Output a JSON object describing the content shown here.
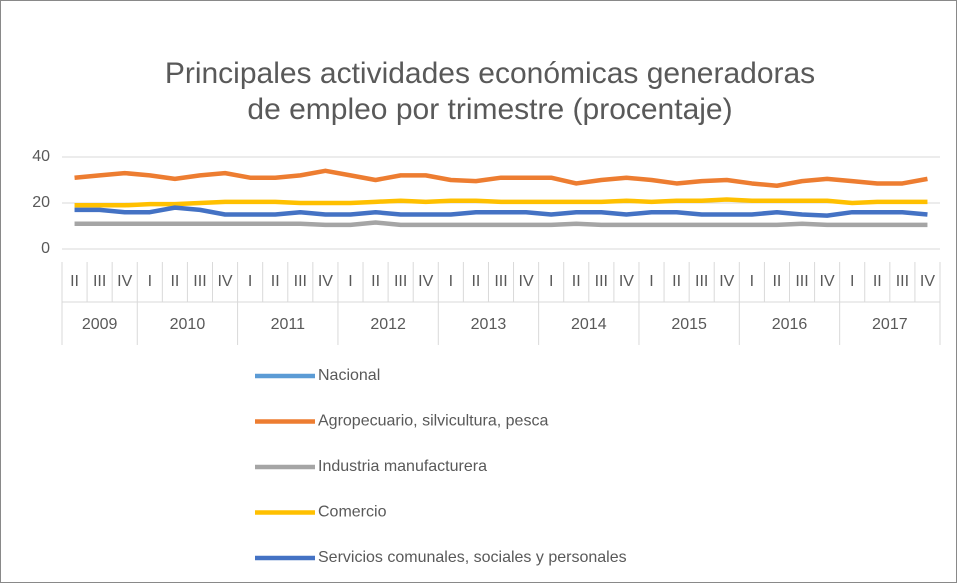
{
  "chart_data": {
    "type": "line",
    "title": [
      "Principales actividades económicas generadoras",
      "de empleo por trimestre (procentaje)"
    ],
    "groups": [
      {
        "name": "2009",
        "categories": [
          "II",
          "III",
          "IV"
        ]
      },
      {
        "name": "2010",
        "categories": [
          "I",
          "II",
          "III",
          "IV"
        ]
      },
      {
        "name": "2011",
        "categories": [
          "I",
          "II",
          "III",
          "IV"
        ]
      },
      {
        "name": "2012",
        "categories": [
          "I",
          "II",
          "III",
          "IV"
        ]
      },
      {
        "name": "2013",
        "categories": [
          "I",
          "II",
          "III",
          "IV"
        ]
      },
      {
        "name": "2014",
        "categories": [
          "I",
          "II",
          "III",
          "IV"
        ]
      },
      {
        "name": "2015",
        "categories": [
          "I",
          "II",
          "III",
          "IV"
        ]
      },
      {
        "name": "2016",
        "categories": [
          "I",
          "II",
          "III",
          "IV"
        ]
      },
      {
        "name": "2017",
        "categories": [
          "I",
          "II",
          "III",
          "IV"
        ]
      }
    ],
    "ylim": [
      0,
      40
    ],
    "yticks": [
      0,
      20,
      40
    ],
    "grid": true,
    "legend": "bottom",
    "series": [
      {
        "name": "Nacional",
        "color": "#5b9bd5",
        "values": [
          null,
          null,
          null,
          null,
          null,
          null,
          null,
          null,
          null,
          null,
          null,
          null,
          null,
          null,
          null,
          null,
          null,
          null,
          null,
          null,
          null,
          null,
          null,
          null,
          null,
          null,
          null,
          null,
          null,
          null,
          null,
          null,
          null,
          null,
          null
        ]
      },
      {
        "name": "Agropecuario, silvicultura, pesca",
        "color": "#ed7d31",
        "values": [
          31,
          32,
          33,
          32,
          30.5,
          32,
          33,
          31,
          31,
          32,
          34,
          32,
          30,
          32,
          32,
          30,
          29.5,
          31,
          31,
          31,
          28.5,
          30,
          31,
          30,
          28.5,
          29.5,
          30,
          28.5,
          27.5,
          29.5,
          30.5,
          29.5,
          28.5,
          28.5,
          30.5
        ]
      },
      {
        "name": "Industria manufacturera",
        "color": "#a5a5a5",
        "values": [
          11,
          11,
          11,
          11,
          11,
          11,
          11,
          11,
          11,
          11,
          10.5,
          10.5,
          11.5,
          10.5,
          10.5,
          10.5,
          10.5,
          10.5,
          10.5,
          10.5,
          11,
          10.5,
          10.5,
          10.5,
          10.5,
          10.5,
          10.5,
          10.5,
          10.5,
          11,
          10.5,
          10.5,
          10.5,
          10.5,
          10.5
        ]
      },
      {
        "name": "Comercio",
        "color": "#ffc000",
        "values": [
          19,
          19,
          19,
          19.5,
          19.5,
          20,
          20.5,
          20.5,
          20.5,
          20,
          20,
          20,
          20.5,
          21,
          20.5,
          21,
          21,
          20.5,
          20.5,
          20.5,
          20.5,
          20.5,
          21,
          20.5,
          21,
          21,
          21.5,
          21,
          21,
          21,
          21,
          20,
          20.5,
          20.5,
          20.5
        ]
      },
      {
        "name": "Servicios comunales, sociales y personales",
        "color": "#4472c4",
        "values": [
          17,
          17,
          16,
          16,
          18,
          17,
          15,
          15,
          15,
          16,
          15,
          15,
          16,
          15,
          15,
          15,
          16,
          16,
          16,
          15,
          16,
          16,
          15,
          16,
          16,
          15,
          15,
          15,
          16,
          15,
          14.5,
          16,
          16,
          16,
          15
        ]
      }
    ]
  }
}
